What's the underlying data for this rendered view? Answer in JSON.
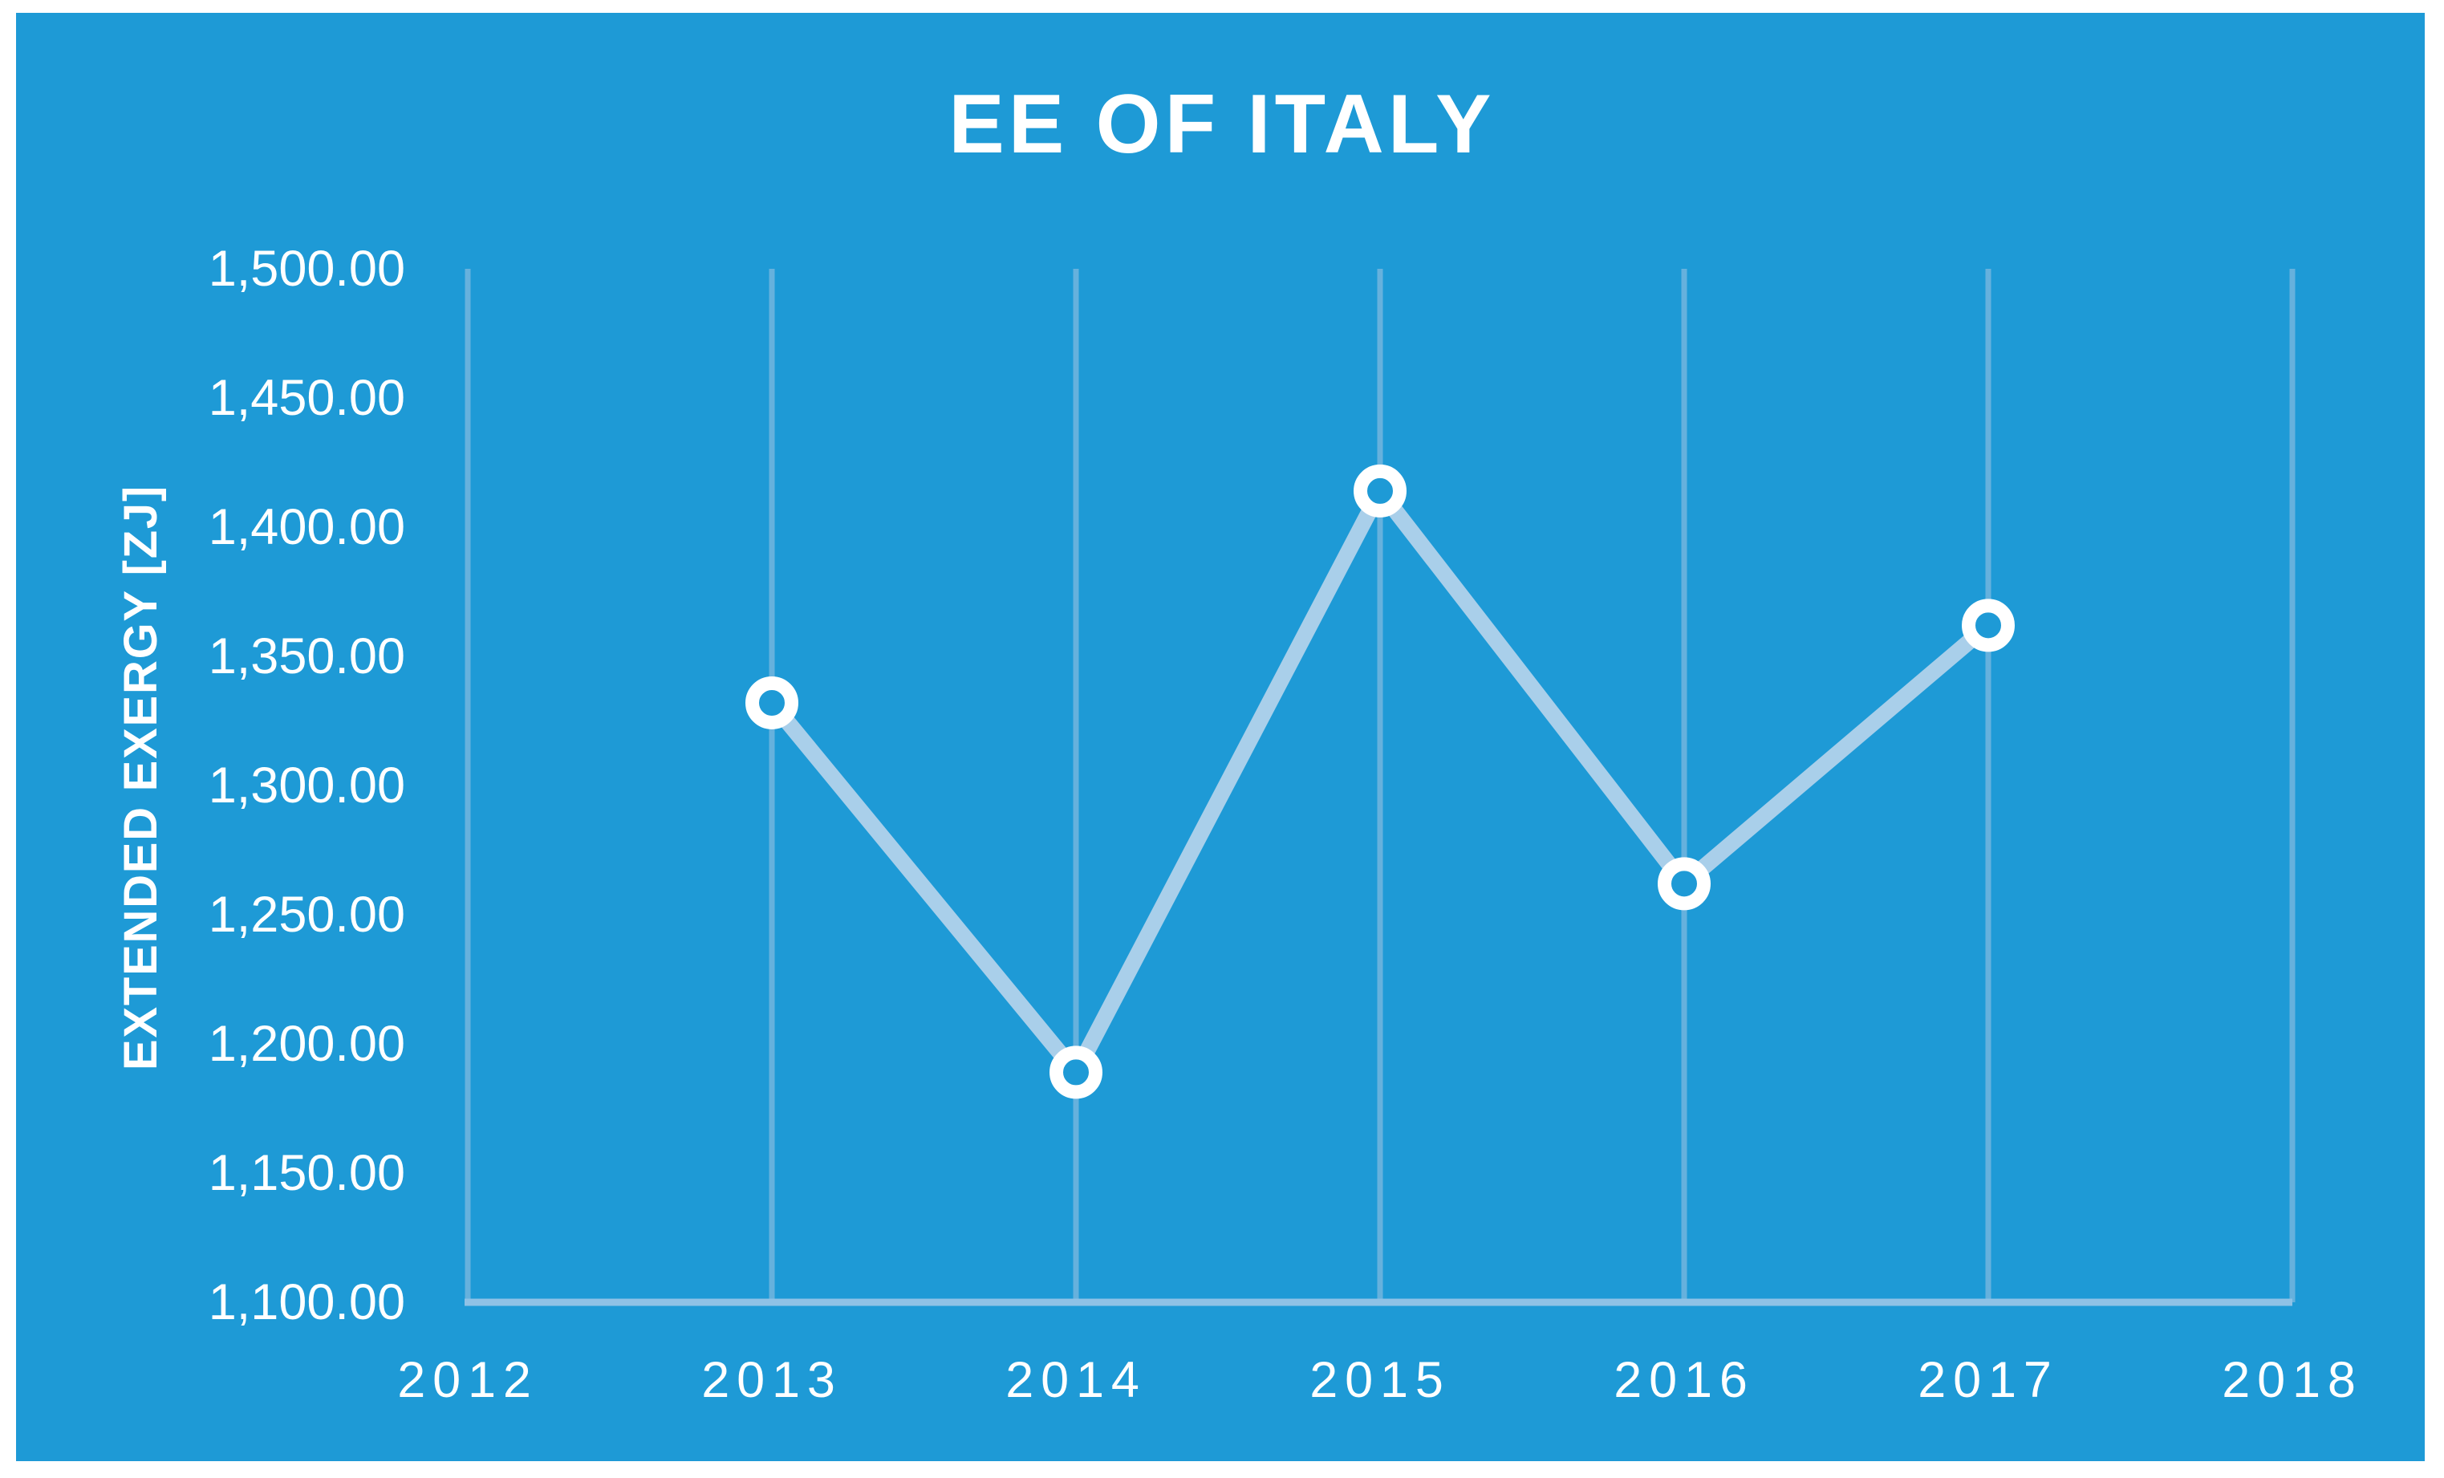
{
  "chart_data": {
    "type": "line",
    "title": "EE OF ITALY",
    "xlabel": "",
    "ylabel": "EXTENDED EXERGY [ZJ]",
    "series": [
      {
        "name": "EE of Italy",
        "x": [
          2013,
          2014,
          2015,
          2016,
          2017
        ],
        "values": [
          1332,
          1189,
          1414,
          1262,
          1362
        ]
      }
    ],
    "xlim": [
      2012,
      2018
    ],
    "ylim": [
      1100,
      1500
    ],
    "x_tick_labels": [
      "2012",
      "2013",
      "2014",
      "2015",
      "2016",
      "2017",
      "2018"
    ],
    "y_tick_labels": [
      "1,100.00",
      "1,150.00",
      "1,200.00",
      "1,250.00",
      "1,300.00",
      "1,350.00",
      "1,400.00",
      "1,450.00",
      "1,500.00"
    ],
    "y_tick_values": [
      1100,
      1150,
      1200,
      1250,
      1300,
      1350,
      1400,
      1450,
      1500
    ],
    "grid": "vertical-gridlines-only",
    "legend": "none",
    "marker": "open-circle",
    "colors": {
      "panel_background": "#1E9AD6",
      "figure_background": "#FFFFFF",
      "text": "#FFFFFF",
      "gridline": "#66B1DD",
      "axis_line": "#8FC2E6",
      "series_line": "#A9CFEA",
      "marker_ring": "#FFFFFF"
    }
  }
}
